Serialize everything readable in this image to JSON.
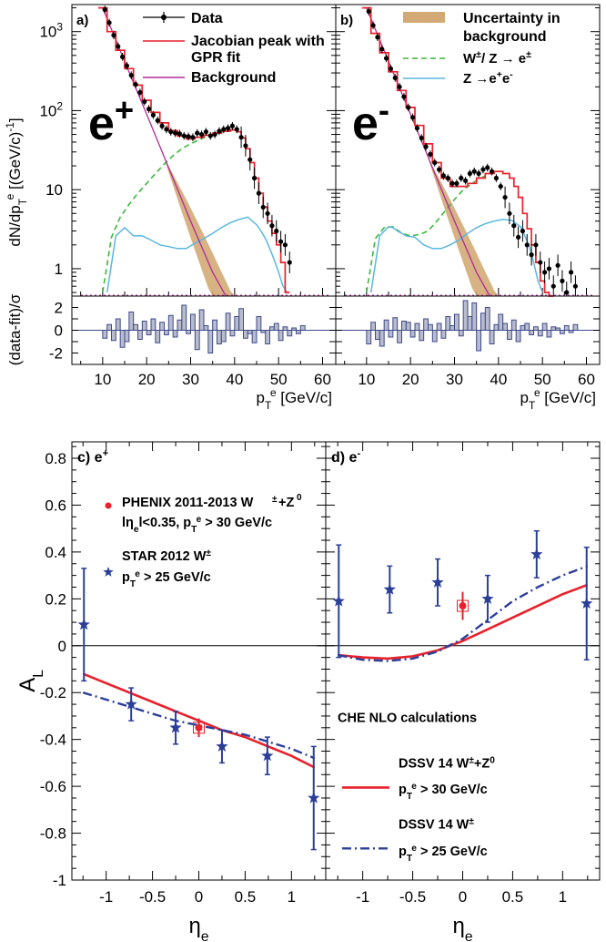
{
  "chart_data": [
    {
      "panel": "a",
      "type": "line",
      "panel_label": "a)",
      "big_label": "e+",
      "ylabel": "dN/dp^e_T [(GeV/c)^-1]",
      "xlim": [
        3,
        63
      ],
      "ylim": [
        0.45,
        2200
      ],
      "y_scale": "log",
      "y_ticks": [
        "1",
        "10",
        "10^2",
        "10^3"
      ],
      "legend": [
        {
          "marker": "point",
          "label": "Data"
        },
        {
          "marker": "red-line",
          "label": "Jacobian peak with",
          "label2": "GPR fit"
        },
        {
          "marker": "magenta-line",
          "label": "Background"
        }
      ],
      "series": [
        {
          "name": "Data",
          "x": [
            10.5,
            11.5,
            12.5,
            13.5,
            14.5,
            15.5,
            16.5,
            17.5,
            18.5,
            19.5,
            20.5,
            21.5,
            22.5,
            23.5,
            24.5,
            25.5,
            26.5,
            27.5,
            28.5,
            29.5,
            30.5,
            31.5,
            32.5,
            33.5,
            34.5,
            35.5,
            36.5,
            37.5,
            38.5,
            39.5,
            40.5,
            41.5,
            42.5,
            43.5,
            44.5,
            45.5,
            46.5,
            47.5,
            48.5,
            49.5,
            50.5,
            51.5,
            52.5
          ],
          "values": [
            1900,
            1300,
            900,
            650,
            480,
            370,
            280,
            215,
            170,
            130,
            105,
            88,
            75,
            64,
            58,
            54,
            52,
            51,
            48,
            47,
            46,
            52,
            50,
            54,
            48,
            50,
            55,
            58,
            60,
            64,
            58,
            46,
            36,
            24,
            14,
            9,
            6,
            5,
            3.5,
            3,
            2.2,
            2,
            1.2
          ]
        },
        {
          "name": "Jacobian peak with GPR fit",
          "x": [
            10,
            12,
            14,
            16,
            18,
            20,
            22,
            24,
            26,
            28,
            30,
            32,
            34,
            36,
            38,
            40,
            41,
            42,
            43,
            44,
            45,
            46,
            47,
            48,
            49,
            50,
            51,
            52
          ],
          "values": [
            2000,
            1000,
            580,
            340,
            210,
            135,
            95,
            70,
            56,
            48,
            44,
            46,
            49,
            52,
            55,
            57,
            54,
            45,
            33,
            22,
            14,
            9,
            6,
            4,
            2.8,
            2,
            1.2,
            0.5
          ]
        },
        {
          "name": "Background",
          "x": [
            10,
            15,
            20,
            25,
            30,
            35,
            38
          ],
          "values": [
            2000,
            420,
            90,
            19,
            4,
            0.9,
            0.45
          ]
        },
        {
          "name": "W/Z -> e",
          "x": [
            10,
            12,
            14,
            16,
            18,
            20,
            22,
            24,
            26,
            28,
            30,
            32,
            34,
            36,
            38,
            40
          ],
          "values": [
            0.5,
            2.5,
            4.5,
            6.5,
            9,
            12,
            16,
            21,
            27,
            33,
            38,
            43,
            48,
            52,
            55,
            57
          ]
        },
        {
          "name": "Z -> e+e-",
          "x": [
            11,
            13,
            15,
            17,
            19,
            21,
            23,
            25,
            27,
            29,
            31,
            33,
            35,
            37,
            39,
            41,
            43,
            45,
            46,
            47,
            48,
            49,
            50,
            51,
            52
          ],
          "values": [
            0.5,
            2.6,
            3.3,
            2.6,
            2.6,
            2.3,
            2.0,
            1.9,
            1.8,
            1.8,
            2.1,
            2.4,
            2.8,
            3.3,
            3.8,
            4.2,
            4.5,
            3.6,
            3.0,
            2.4,
            1.8,
            1.3,
            0.9,
            0.6,
            0.5
          ]
        }
      ]
    },
    {
      "panel": "b",
      "type": "line",
      "panel_label": "b)",
      "big_label": "e-",
      "xlim": [
        3,
        63
      ],
      "ylim": [
        0.45,
        2200
      ],
      "y_scale": "log",
      "legend": [
        {
          "marker": "band",
          "label": "Uncertainty in",
          "label2": "background"
        },
        {
          "marker": "green-dash",
          "label": "W±/ Z → e±"
        },
        {
          "marker": "blue-line",
          "label": "Z →e+e-"
        }
      ],
      "series": [
        {
          "name": "Data",
          "x": [
            10.5,
            11.5,
            12.5,
            13.5,
            14.5,
            15.5,
            16.5,
            17.5,
            18.5,
            19.5,
            20.5,
            21.5,
            22.5,
            23.5,
            24.5,
            25.5,
            26.5,
            27.5,
            28.5,
            29.5,
            30.5,
            31.5,
            32.5,
            33.5,
            34.5,
            35.5,
            36.5,
            37.5,
            38.5,
            39.5,
            40.5,
            41.5,
            42.5,
            43.5,
            44.5,
            45.5,
            46.5,
            47.5,
            48.5,
            49.5,
            50.5,
            51.5,
            52.5,
            53.5,
            54.5,
            55.5,
            56.5,
            57.5
          ],
          "values": [
            1800,
            1200,
            850,
            600,
            460,
            340,
            260,
            200,
            150,
            110,
            82,
            60,
            45,
            35,
            28,
            22,
            18,
            15,
            14,
            12,
            12,
            14,
            13,
            16,
            17,
            16,
            18,
            19,
            17,
            14,
            11,
            8,
            5,
            3.5,
            2.5,
            3,
            2,
            1.5,
            2,
            1.2,
            0.9,
            1,
            0.6,
            1.1,
            0.7,
            0.5,
            0.9,
            0.6
          ]
        },
        {
          "name": "Jacobian peak with GPR fit",
          "x": [
            10,
            12,
            14,
            16,
            18,
            20,
            22,
            24,
            26,
            28,
            30,
            32,
            34,
            36,
            38,
            40,
            42,
            43,
            44,
            45,
            46,
            47,
            48,
            49,
            50,
            51,
            52
          ],
          "values": [
            2000,
            950,
            540,
            310,
            180,
            110,
            65,
            38,
            22,
            14,
            11,
            11,
            12,
            14,
            16,
            17,
            16,
            14,
            11,
            8,
            5,
            3.2,
            2,
            1.2,
            0.7,
            0.5,
            0.45
          ]
        },
        {
          "name": "Background",
          "x": [
            10,
            15,
            20,
            25,
            30,
            35,
            38
          ],
          "values": [
            2000,
            420,
            90,
            19,
            4,
            0.9,
            0.45
          ]
        },
        {
          "name": "W/Z -> e",
          "x": [
            10,
            12,
            14,
            16,
            18,
            20,
            22,
            24,
            26,
            28,
            30,
            32,
            34,
            36,
            38,
            40
          ],
          "values": [
            0.5,
            2.4,
            3.3,
            3.4,
            2.8,
            2.6,
            2.7,
            3,
            4,
            5.5,
            7.5,
            10,
            12,
            14,
            16,
            17
          ]
        },
        {
          "name": "Z -> e+e-",
          "x": [
            11,
            13,
            15,
            16,
            17,
            19,
            21,
            23,
            25,
            27,
            29,
            31,
            33,
            35,
            37,
            39,
            41,
            43,
            45,
            46,
            47,
            48,
            49,
            50
          ],
          "values": [
            0.5,
            2.6,
            3.4,
            3.3,
            3.0,
            2.6,
            2.5,
            2.0,
            1.8,
            1.8,
            2.0,
            2.3,
            2.8,
            3.3,
            3.7,
            4.0,
            4.2,
            4.1,
            3.4,
            2.6,
            1.9,
            1.2,
            0.7,
            0.5
          ]
        }
      ]
    },
    {
      "panel": "a-residual",
      "type": "bar",
      "ylabel": "(data-fit)/σ",
      "xlabel": "p^e_T [GeV/c]",
      "xlim": [
        3,
        63
      ],
      "ylim": [
        -3,
        3
      ],
      "x_ticks": [
        "10",
        "20",
        "30",
        "40",
        "50",
        "60"
      ],
      "y_ticks": [
        "-2",
        "0",
        "2"
      ],
      "x": [
        10.5,
        11.5,
        12.5,
        13.5,
        14.5,
        15.5,
        16.5,
        17.5,
        18.5,
        19.5,
        20.5,
        21.5,
        22.5,
        23.5,
        24.5,
        25.5,
        26.5,
        27.5,
        28.5,
        29.5,
        30.5,
        31.5,
        32.5,
        33.5,
        34.5,
        35.5,
        36.5,
        37.5,
        38.5,
        39.5,
        40.5,
        41.5,
        42.5,
        43.5,
        44.5,
        45.5,
        46.5,
        47.5,
        48.5,
        49.5,
        50.5,
        51.5,
        52.5,
        53.5,
        54.5,
        55.5
      ],
      "values": [
        -0.7,
        0.5,
        -0.9,
        1.0,
        -1.5,
        -1.0,
        1.6,
        0.5,
        -0.8,
        0.8,
        -0.4,
        1.0,
        -1.1,
        0.7,
        -0.4,
        1.3,
        -0.6,
        0.9,
        2.2,
        -0.3,
        1.4,
        -1.7,
        1.8,
        0.4,
        -2.0,
        0.9,
        -1.2,
        -1.0,
        1.5,
        -0.5,
        1.2,
        1.9,
        -0.7,
        -0.3,
        -1.1,
        1.2,
        -0.2,
        -1.2,
        0.3,
        0.6,
        -0.9,
        0.3,
        -0.5,
        0.2,
        -0.3,
        0.4
      ]
    },
    {
      "panel": "b-residual",
      "type": "bar",
      "xlabel": "p^e_T [GeV/c]",
      "xlim": [
        3,
        63
      ],
      "ylim": [
        -3,
        3
      ],
      "x_ticks": [
        "10",
        "20",
        "30",
        "40",
        "50",
        "60"
      ],
      "x": [
        10.5,
        11.5,
        12.5,
        13.5,
        14.5,
        15.5,
        16.5,
        17.5,
        18.5,
        19.5,
        20.5,
        21.5,
        22.5,
        23.5,
        24.5,
        25.5,
        26.5,
        27.5,
        28.5,
        29.5,
        30.5,
        31.5,
        32.5,
        33.5,
        34.5,
        35.5,
        36.5,
        37.5,
        38.5,
        39.5,
        40.5,
        41.5,
        42.5,
        43.5,
        44.5,
        45.5,
        46.5,
        47.5,
        48.5,
        49.5,
        50.5,
        51.5,
        52.5,
        53.5,
        54.5,
        55.5,
        56.5,
        57.5
      ],
      "values": [
        -1.2,
        0.7,
        -0.8,
        -1.4,
        0.9,
        -0.6,
        1.1,
        -1.1,
        0.8,
        0.7,
        -0.6,
        0.6,
        -0.9,
        1.0,
        0.5,
        -1.0,
        0.6,
        -0.7,
        1.2,
        0.4,
        1.4,
        -0.5,
        2.6,
        1.2,
        2.4,
        -1.8,
        1.5,
        2.0,
        -1.2,
        0.5,
        1.4,
        0.6,
        -0.8,
        0.9,
        -1.0,
        0.4,
        0.6,
        -0.4,
        0.3,
        -0.5,
        0.6,
        -0.6,
        0.3,
        0.2,
        -0.3,
        0.4,
        -0.2,
        0.5
      ]
    },
    {
      "panel": "c",
      "type": "scatter",
      "panel_label": "c) e+",
      "ylabel": "A_L",
      "xlabel": "η_e",
      "xlim": [
        -1.37,
        1.37
      ],
      "ylim": [
        -1,
        0.87
      ],
      "x_ticks": [
        "-1",
        "-0.5",
        "0",
        "0.5",
        "1"
      ],
      "y_ticks": [
        "-1",
        "-0.8",
        "-0.6",
        "-0.4",
        "-0.2",
        "0",
        "0.2",
        "0.4",
        "0.6",
        "0.8"
      ],
      "legend": [
        {
          "marker": "red-dot",
          "label": "PHENIX 2011-2013 W±+Z0",
          "label2": "lηel<0.35, pT^e > 30 GeV/c"
        },
        {
          "marker": "blue-star",
          "label": "STAR 2012 W±",
          "label2": "pT^e > 25 GeV/c"
        }
      ],
      "series": [
        {
          "name": "STAR 2012 W±",
          "x": [
            -1.24,
            -0.73,
            -0.25,
            0.25,
            0.74,
            1.24
          ],
          "values": [
            0.09,
            -0.25,
            -0.35,
            -0.43,
            -0.47,
            -0.65
          ],
          "errors": [
            0.24,
            0.07,
            0.07,
            0.07,
            0.08,
            0.22
          ]
        },
        {
          "name": "PHENIX 2011-2013 W±+Z0",
          "x": [
            0.0
          ],
          "values": [
            -0.35
          ],
          "errors": [
            0.04
          ]
        },
        {
          "name": "DSSV 14 W±+Z0",
          "x": [
            -1.25,
            -1.0,
            -0.75,
            -0.5,
            -0.25,
            0,
            0.25,
            0.5,
            0.75,
            1.0,
            1.25
          ],
          "values": [
            -0.12,
            -0.16,
            -0.2,
            -0.24,
            -0.28,
            -0.32,
            -0.36,
            -0.39,
            -0.43,
            -0.47,
            -0.52
          ]
        },
        {
          "name": "DSSV 14 W±",
          "x": [
            -1.25,
            -1.0,
            -0.75,
            -0.5,
            -0.25,
            0,
            0.25,
            0.5,
            0.75,
            1.0,
            1.25
          ],
          "values": [
            -0.2,
            -0.23,
            -0.26,
            -0.29,
            -0.32,
            -0.34,
            -0.36,
            -0.38,
            -0.41,
            -0.44,
            -0.48
          ]
        }
      ]
    },
    {
      "panel": "d",
      "type": "scatter",
      "panel_label": "d) e-",
      "xlabel": "η_e",
      "xlim": [
        -1.37,
        1.37
      ],
      "ylim": [
        -1,
        0.87
      ],
      "x_ticks": [
        "-1",
        "-0.5",
        "0",
        "0.5",
        "1"
      ],
      "annotation": "CHE NLO calculations",
      "legend": [
        {
          "marker": "red-line",
          "label": "DSSV 14 W±+Z0",
          "label2": "pT^e > 30 GeV/c"
        },
        {
          "marker": "blue-dashdot",
          "label": "DSSV 14 W±",
          "label2": "pT^e > 25 GeV/c"
        }
      ],
      "series": [
        {
          "name": "STAR 2012 W±",
          "x": [
            -1.24,
            -0.73,
            -0.25,
            0.25,
            0.74,
            1.24
          ],
          "values": [
            0.19,
            0.24,
            0.27,
            0.2,
            0.39,
            0.18
          ],
          "errors": [
            0.24,
            0.1,
            0.1,
            0.1,
            0.1,
            0.24
          ]
        },
        {
          "name": "PHENIX 2011-2013 W±+Z0",
          "x": [
            0.0
          ],
          "values": [
            0.17
          ],
          "errors": [
            0.06
          ]
        },
        {
          "name": "DSSV 14 W±+Z0",
          "x": [
            -1.25,
            -1.0,
            -0.75,
            -0.5,
            -0.25,
            0,
            0.25,
            0.5,
            0.75,
            1.0,
            1.25
          ],
          "values": [
            -0.04,
            -0.05,
            -0.055,
            -0.045,
            -0.02,
            0.02,
            0.07,
            0.12,
            0.17,
            0.22,
            0.26
          ]
        },
        {
          "name": "DSSV 14 W±",
          "x": [
            -1.25,
            -1.0,
            -0.75,
            -0.5,
            -0.25,
            0,
            0.25,
            0.5,
            0.75,
            1.0,
            1.25
          ],
          "values": [
            -0.04,
            -0.06,
            -0.065,
            -0.055,
            -0.025,
            0.03,
            0.11,
            0.19,
            0.25,
            0.3,
            0.34
          ]
        }
      ]
    }
  ]
}
